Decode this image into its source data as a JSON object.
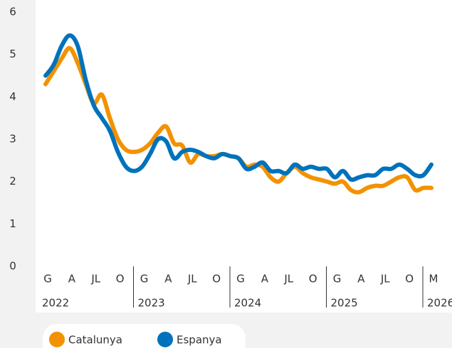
{
  "chart_data": {
    "type": "line",
    "categories": [
      "G",
      null,
      null,
      "A",
      null,
      null,
      "JL",
      null,
      null,
      "O",
      null,
      null,
      "G",
      null,
      null,
      "A",
      null,
      null,
      "JL",
      null,
      null,
      "O",
      null,
      null,
      "G",
      null,
      null,
      "A",
      null,
      null,
      "JL",
      null,
      null,
      "O",
      null,
      null,
      "G",
      null,
      null,
      "A",
      null,
      null,
      "JL",
      null,
      null,
      "O",
      null,
      null,
      "M"
    ],
    "year_groups": [
      "2022",
      "2023",
      "2024",
      "2025",
      "2026"
    ],
    "series": [
      {
        "name": "Catalunya",
        "color": "#f39200",
        "values": [
          4.3,
          4.6,
          4.9,
          5.15,
          4.8,
          4.3,
          3.85,
          4.05,
          3.5,
          3.0,
          2.75,
          2.7,
          2.75,
          2.9,
          3.15,
          3.3,
          2.9,
          2.85,
          2.45,
          2.65,
          2.6,
          2.6,
          2.65,
          2.6,
          2.55,
          2.35,
          2.4,
          2.35,
          2.1,
          2.0,
          2.2,
          2.35,
          2.2,
          2.1,
          2.05,
          2.0,
          1.95,
          2.0,
          1.8,
          1.75,
          1.85,
          1.9,
          1.9,
          2.0,
          2.1,
          2.1,
          1.8,
          1.85,
          1.85
        ]
      },
      {
        "name": "Espanya",
        "color": "#0072bc",
        "values": [
          4.5,
          4.75,
          5.2,
          5.45,
          5.2,
          4.4,
          3.8,
          3.5,
          3.2,
          2.7,
          2.35,
          2.25,
          2.35,
          2.65,
          3.0,
          2.95,
          2.55,
          2.7,
          2.75,
          2.7,
          2.6,
          2.55,
          2.65,
          2.6,
          2.55,
          2.3,
          2.35,
          2.45,
          2.25,
          2.25,
          2.2,
          2.4,
          2.3,
          2.35,
          2.3,
          2.3,
          2.1,
          2.25,
          2.05,
          2.1,
          2.15,
          2.15,
          2.3,
          2.3,
          2.4,
          2.3,
          2.15,
          2.15,
          2.4
        ]
      }
    ],
    "ylim": [
      0,
      6
    ],
    "yticks": [
      0,
      1,
      2,
      3,
      4,
      5,
      6
    ],
    "grid": false,
    "legend": "bottom-left"
  }
}
